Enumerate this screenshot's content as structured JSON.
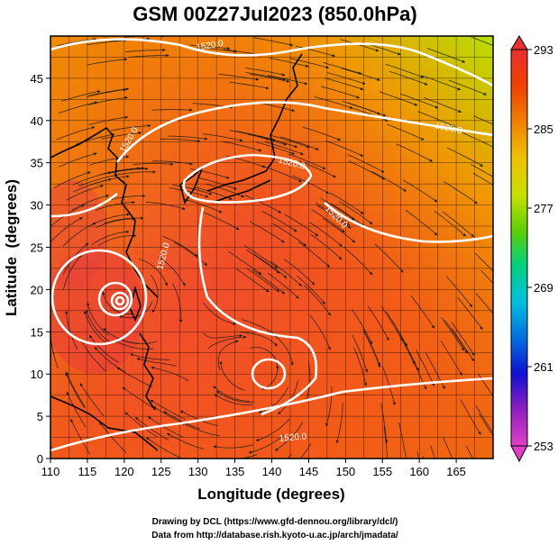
{
  "chart_data": {
    "type": "heatmap",
    "title": "GSM 00Z27Jul2023 (850.0hPa)",
    "xlabel": "Longitude (degrees)",
    "ylabel": "Latitude  (degrees)",
    "xlim": [
      110,
      170
    ],
    "ylim": [
      0,
      50
    ],
    "xticks": [
      "110",
      "115",
      "120",
      "125",
      "130",
      "135",
      "140",
      "145",
      "150",
      "155",
      "160",
      "165"
    ],
    "yticks": [
      "0",
      "5",
      "10",
      "15",
      "20",
      "25",
      "30",
      "35",
      "40",
      "45"
    ],
    "grid": true,
    "colorbar": {
      "min": 253,
      "max": 293,
      "ticks": [
        "293",
        "285",
        "277",
        "269",
        "261",
        "253"
      ],
      "colors": [
        "#e040c8",
        "#9020c0",
        "#1010d0",
        "#0070e0",
        "#00c0e0",
        "#00d080",
        "#60d000",
        "#c8e000",
        "#f0c000",
        "#f08000",
        "#f04000",
        "#e83030"
      ]
    },
    "contour_labels": [
      "1520.0",
      "1520.0",
      "1520.0",
      "1520.0",
      "1520.0",
      "1520.0",
      "1520.0"
    ],
    "features": [
      {
        "name": "typhoon",
        "lon": 120.3,
        "lat": 20.5
      },
      {
        "name": "low",
        "lon": 138.5,
        "lat": 11.0
      }
    ]
  },
  "credits": {
    "line1": "Drawing by DCL (https://www.gfd-dennou.org/library/dcl/)",
    "line2": "Data from http://database.rish.kyoto-u.ac.jp/arch/jmadata/"
  }
}
